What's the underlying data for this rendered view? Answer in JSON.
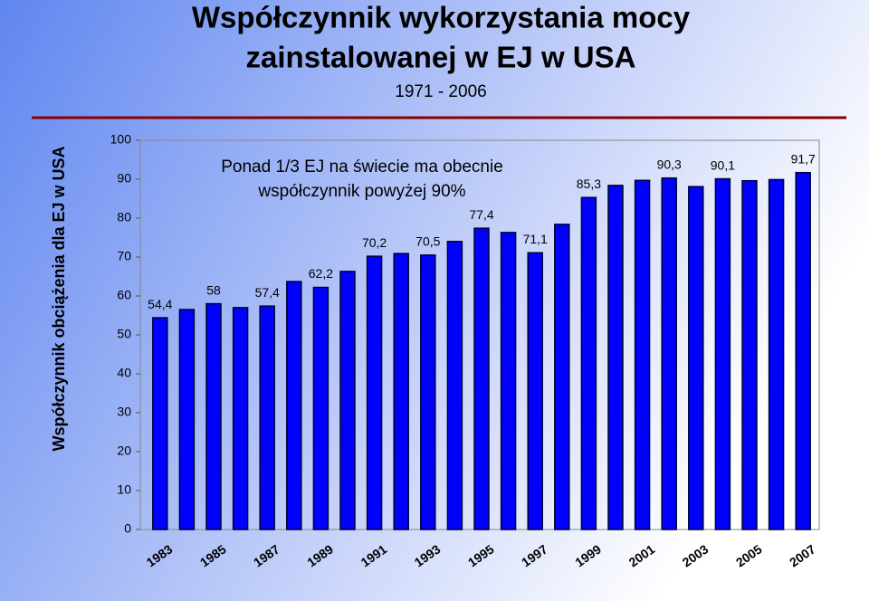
{
  "chart_data": {
    "type": "bar",
    "title": "Współczynnik wykorzystania mocy",
    "title_line2": "zainstalowanej w EJ w USA",
    "subtitle": "1971 - 2006",
    "y_label": "Współczynnik obciążenia dla EJ  w USA",
    "annotation": [
      "Ponad 1/3 EJ  na świecie ma obecnie",
      "współczynnik powyżej  90%"
    ],
    "categories": [
      "1983",
      null,
      "1985",
      null,
      "1987",
      null,
      "1989",
      null,
      "1991",
      null,
      "1993",
      null,
      "1995",
      null,
      "1997",
      null,
      "1999",
      null,
      "2001",
      null,
      "2003",
      null,
      "2005",
      null,
      "2007"
    ],
    "values": [
      54.4,
      56.5,
      58,
      57.0,
      57.4,
      63.7,
      62.2,
      66.3,
      70.2,
      70.9,
      70.5,
      74.0,
      77.4,
      76.3,
      71.1,
      78.4,
      85.3,
      88.4,
      89.7,
      90.3,
      88.1,
      90.1,
      89.6,
      89.9,
      91.7
    ],
    "value_labels": [
      "54,4",
      null,
      "58",
      null,
      "57,4",
      null,
      "62,2",
      null,
      "70,2",
      null,
      "70,5",
      null,
      "77,4",
      null,
      "71,1",
      null,
      "85,3",
      null,
      null,
      "90,3",
      null,
      "90,1",
      null,
      null,
      "91,7"
    ],
    "color": "#0000ff",
    "ylim": [
      0,
      100
    ],
    "yticks": [
      0,
      10,
      20,
      30,
      40,
      50,
      60,
      70,
      80,
      90,
      100
    ]
  }
}
